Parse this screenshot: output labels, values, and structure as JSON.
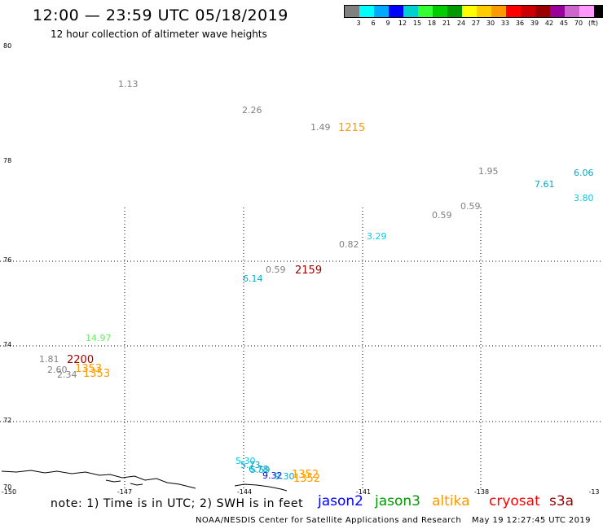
{
  "title": "12:00 — 23:59 UTC 05/18/2019",
  "subtitle": "12 hour collection of altimeter wave heights",
  "scale": {
    "colors": [
      "#808080",
      "#00ffff",
      "#00aaff",
      "#0000ff",
      "#00d0d0",
      "#33ff33",
      "#00cc00",
      "#009900",
      "#ffff00",
      "#ffcc00",
      "#ff9900",
      "#ff0000",
      "#cc0000",
      "#990000",
      "#990099",
      "#cc66cc",
      "#ff99ff",
      "#000000"
    ],
    "labels": [
      "3",
      "6",
      "9",
      "12",
      "15",
      "18",
      "21",
      "24",
      "27",
      "30",
      "33",
      "36",
      "39",
      "42",
      "45",
      "70",
      "(ft)"
    ]
  },
  "axes": {
    "lat_labels": [
      "80",
      "78",
      "76",
      "74",
      "72",
      "70"
    ],
    "lon_labels": [
      "-150",
      "-147",
      "-144",
      "-141",
      "-138",
      "-13"
    ]
  },
  "observations": [
    {
      "text": "1.13",
      "color": "#808080"
    },
    {
      "text": "2.26",
      "color": "#808080"
    },
    {
      "text": "1.49",
      "color": "#808080"
    },
    {
      "text": "1215",
      "color": "#ff9900"
    },
    {
      "text": "1.95",
      "color": "#808080"
    },
    {
      "text": "6.06",
      "color": "#00aacc"
    },
    {
      "text": "7.61",
      "color": "#00aacc"
    },
    {
      "text": "3.80",
      "color": "#00ccee"
    },
    {
      "text": "0.59",
      "color": "#808080"
    },
    {
      "text": "0.59",
      "color": "#808080"
    },
    {
      "text": "3.29",
      "color": "#00ccee"
    },
    {
      "text": "0.82",
      "color": "#808080"
    },
    {
      "text": "0.59",
      "color": "#808080"
    },
    {
      "text": "2159",
      "color": "#990000"
    },
    {
      "text": "6.14",
      "color": "#00aacc"
    },
    {
      "text": "14.97",
      "color": "#66ee66"
    },
    {
      "text": "1.81",
      "color": "#808080"
    },
    {
      "text": "2200",
      "color": "#990000"
    },
    {
      "text": "2.60",
      "color": "#808080"
    },
    {
      "text": "1353",
      "color": "#ff9900"
    },
    {
      "text": "2.34",
      "color": "#808080"
    },
    {
      "text": "1353",
      "color": "#ff9900"
    },
    {
      "text": "5.30",
      "color": "#00ccee"
    },
    {
      "text": "5.73",
      "color": "#00aacc"
    },
    {
      "text": "6.78",
      "color": "#00aacc"
    },
    {
      "text": "5.59",
      "color": "#00aacc"
    },
    {
      "text": "9.32",
      "color": "#0000ff"
    },
    {
      "text": "9.30",
      "color": "#00aacc"
    },
    {
      "text": "1352",
      "color": "#ff9900"
    },
    {
      "text": "1352",
      "color": "#ff9900"
    }
  ],
  "note": "note: 1) Time is in UTC; 2) SWH is in feet",
  "legend": [
    {
      "name": "jason2",
      "color": "#0000ff"
    },
    {
      "name": "jason3",
      "color": "#009900"
    },
    {
      "name": "altika",
      "color": "#ff9900"
    },
    {
      "name": "cryosat",
      "color": "#ff0000"
    },
    {
      "name": "s3a",
      "color": "#990000"
    }
  ],
  "credit": "NOAA/NESDIS Center for Satellite Applications and Research",
  "timestamp": "May 19 12:27:45 UTC 2019"
}
